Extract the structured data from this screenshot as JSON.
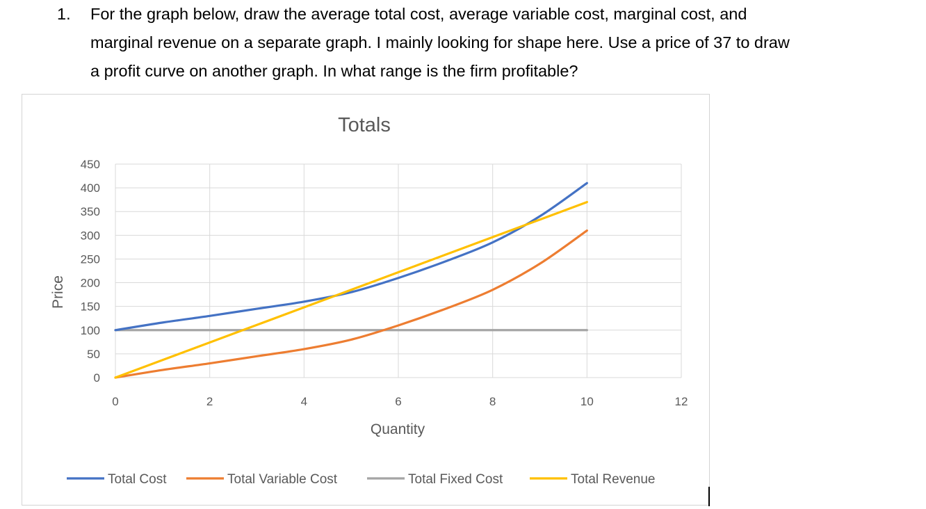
{
  "question": {
    "number": "1.",
    "lines": [
      "For the graph below, draw the average total cost, average variable cost, marginal cost, and",
      "marginal revenue on a separate graph. I mainly looking for shape here. Use a price of 37 to draw",
      "a profit curve on another graph. In what range is the firm profitable?"
    ]
  },
  "chart_data": {
    "type": "line",
    "title": "Totals",
    "xlabel": "Quantity",
    "ylabel": "Price",
    "xlim": [
      0,
      12
    ],
    "ylim": [
      0,
      450
    ],
    "x_ticks": [
      0,
      2,
      4,
      6,
      8,
      10,
      12
    ],
    "y_ticks": [
      0,
      50,
      100,
      150,
      200,
      250,
      300,
      350,
      400,
      450
    ],
    "grid": true,
    "legend_position": "bottom",
    "x": [
      0,
      1,
      2,
      3,
      4,
      5,
      6,
      7,
      8,
      9,
      10
    ],
    "series": [
      {
        "name": "Total Cost",
        "color": "#4472C4",
        "values": [
          100,
          116,
          130,
          145,
          160,
          180,
          210,
          245,
          285,
          340,
          410
        ]
      },
      {
        "name": "Total Variable Cost",
        "color": "#ED7D31",
        "values": [
          0,
          16,
          30,
          45,
          60,
          80,
          110,
          145,
          185,
          240,
          310
        ]
      },
      {
        "name": "Total Fixed Cost",
        "color": "#A5A5A5",
        "values": [
          100,
          100,
          100,
          100,
          100,
          100,
          100,
          100,
          100,
          100,
          100
        ]
      },
      {
        "name": "Total Revenue",
        "color": "#FFC000",
        "values": [
          0,
          37,
          74,
          111,
          148,
          185,
          222,
          259,
          296,
          333,
          370
        ]
      }
    ]
  }
}
